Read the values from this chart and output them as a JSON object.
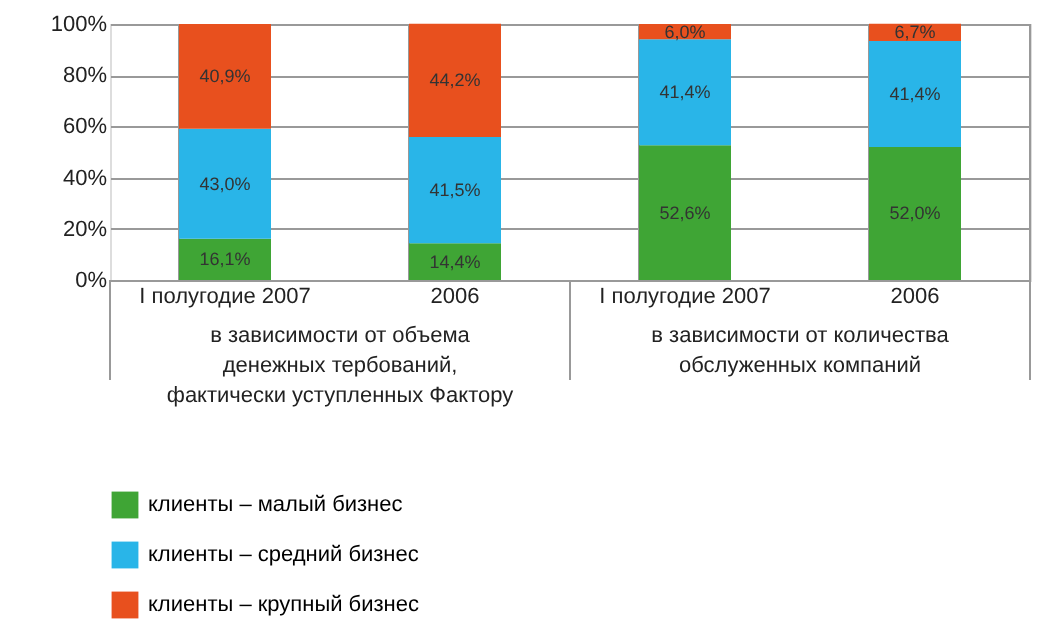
{
  "chart_data": {
    "type": "bar",
    "stacked": true,
    "categories": [
      "I полугодие 2007",
      "2006",
      "I полугодие 2007",
      "2006"
    ],
    "series": [
      {
        "name": "клиенты – малый бизнес",
        "color": "#3fa535",
        "values": [
          16.1,
          14.4,
          52.6,
          52.0
        ],
        "value_labels": [
          "16,1%",
          "14,4%",
          "52,6%",
          "52,0%"
        ]
      },
      {
        "name": "клиенты – средний бизнес",
        "color": "#29b5e8",
        "values": [
          43.0,
          41.5,
          41.4,
          41.4
        ],
        "value_labels": [
          "43,0%",
          "41,5%",
          "41,4%",
          "41,4%"
        ]
      },
      {
        "name": "клиенты – крупный бизнес",
        "color": "#e8501e",
        "values": [
          40.9,
          44.2,
          6.0,
          6.7
        ],
        "value_labels": [
          "40,9%",
          "44,2%",
          "6,0%",
          "6,7%"
        ]
      }
    ],
    "ylim": [
      0,
      100
    ],
    "yticks": [
      {
        "value": 0,
        "label": "0%"
      },
      {
        "value": 20,
        "label": "20%"
      },
      {
        "value": 40,
        "label": "40%"
      },
      {
        "value": 60,
        "label": "60%"
      },
      {
        "value": 80,
        "label": "80%"
      },
      {
        "value": 100,
        "label": "100%"
      }
    ],
    "annotations": [
      "в зависимости от объема\nденежных тербований,\nфактически уступленных Фактору",
      "в зависимости от количества\nобслуженных компаний"
    ],
    "grid": true,
    "legend": "bottom left"
  }
}
